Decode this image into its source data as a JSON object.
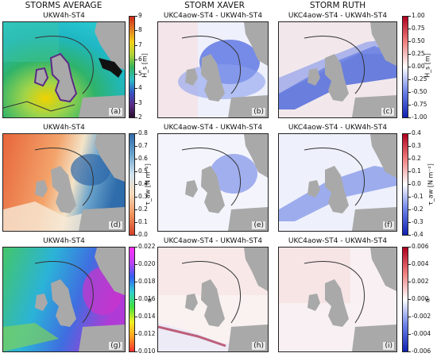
{
  "columns": {
    "left": "STORMS AVERAGE",
    "middle": "STORM XAVER",
    "right": "STORM RUTH"
  },
  "chart_data": {
    "type": "heatmap",
    "rows": [
      {
        "variable_label": "H_s [m]",
        "colorbar_left": {
          "ticks": [
            "9",
            "8",
            "7",
            "6",
            "5",
            "4",
            "3",
            "2"
          ],
          "range": [
            2,
            9
          ]
        },
        "colorbar_right": {
          "ticks": [
            "1.00",
            "0.75",
            "0.50",
            "0.25",
            "0.00",
            "-0.25",
            "-0.50",
            "-0.75",
            "-1.00"
          ],
          "range": [
            -1,
            1
          ]
        },
        "panels": [
          {
            "title": "UKW4h-ST4",
            "label": "(a)"
          },
          {
            "title": "UKC4aow-ST4 - UKW4h-ST4",
            "label": "(b)"
          },
          {
            "title": "UKC4aow-ST4 - UKW4h-ST4",
            "label": "(c)"
          }
        ]
      },
      {
        "variable_label": "τ_aw [N m⁻²]",
        "colorbar_left": {
          "ticks": [
            "0.8",
            "0.7",
            "0.6",
            "0.5",
            "0.4",
            "0.3",
            "0.2",
            "0.1",
            "0.0"
          ],
          "range": [
            0,
            0.8
          ]
        },
        "colorbar_right": {
          "ticks": [
            "0.4",
            "0.3",
            "0.2",
            "0.1",
            "0.0",
            "-0.1",
            "-0.2",
            "-0.3",
            "-0.4"
          ],
          "range": [
            -0.4,
            0.4
          ]
        },
        "panels": [
          {
            "title": "UKW4h-ST4",
            "label": "(d)"
          },
          {
            "title": "UKC4aow-ST4 - UKW4h-ST4",
            "label": "(e)"
          },
          {
            "title": "UKC4aow-ST4 - UKW4h-ST4",
            "label": "(f)"
          }
        ]
      },
      {
        "variable_label": "α",
        "colorbar_left": {
          "ticks": [
            "0.022",
            "0.020",
            "0.018",
            "0.016",
            "0.014",
            "0.012",
            "0.010"
          ],
          "range": [
            0.01,
            0.022
          ]
        },
        "colorbar_right": {
          "ticks": [
            "0.006",
            "0.004",
            "0.002",
            "0.000",
            "-0.002",
            "-0.004",
            "-0.006"
          ],
          "range": [
            -0.006,
            0.006
          ]
        },
        "panels": [
          {
            "title": "UKW4h-ST4",
            "label": "(g)"
          },
          {
            "title": "UKC4aow-ST4 - UKW4h-ST4",
            "label": "(h)"
          },
          {
            "title": "UKC4aow-ST4 - UKW4h-ST4",
            "label": "(i)"
          }
        ]
      }
    ]
  }
}
